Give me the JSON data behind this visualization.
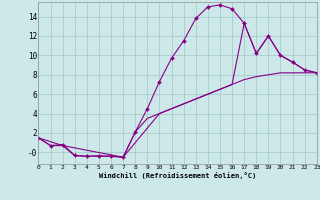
{
  "xlabel": "Windchill (Refroidissement éolien,°C)",
  "background_color": "#cce8e8",
  "grid_color": "#aacccc",
  "line_color": "#880088",
  "xlim": [
    0,
    23
  ],
  "ylim": [
    -1.2,
    15.5
  ],
  "xticks": [
    0,
    1,
    2,
    3,
    4,
    5,
    6,
    7,
    8,
    9,
    10,
    11,
    12,
    13,
    14,
    15,
    16,
    17,
    18,
    19,
    20,
    21,
    22,
    23
  ],
  "yticks": [
    0,
    2,
    4,
    6,
    8,
    10,
    12,
    14
  ],
  "ytick_labels": [
    "-0",
    "2",
    "4",
    "6",
    "8",
    "10",
    "12",
    "14"
  ],
  "series1_x": [
    0,
    1,
    2,
    3,
    4,
    5,
    6,
    7,
    8,
    9,
    10,
    11,
    12,
    13,
    14,
    15,
    16,
    17,
    18,
    19,
    20,
    21,
    22,
    23
  ],
  "series1_y": [
    1.5,
    0.7,
    0.8,
    -0.3,
    -0.4,
    -0.35,
    -0.4,
    -0.5,
    2.1,
    4.5,
    7.3,
    9.7,
    11.5,
    13.8,
    15.0,
    15.2,
    14.8,
    13.3,
    10.2,
    12.0,
    10.0,
    9.3,
    8.5,
    8.2
  ],
  "series2_x": [
    0,
    1,
    2,
    3,
    4,
    5,
    6,
    7,
    8,
    9,
    10,
    11,
    12,
    13,
    14,
    15,
    16,
    17,
    18,
    19,
    20,
    21,
    22,
    23
  ],
  "series2_y": [
    1.5,
    0.7,
    0.7,
    -0.35,
    -0.4,
    -0.4,
    -0.4,
    -0.5,
    2.1,
    3.5,
    4.0,
    4.5,
    5.0,
    5.5,
    6.0,
    6.5,
    7.0,
    7.5,
    7.8,
    8.0,
    8.2,
    8.2,
    8.2,
    8.2
  ],
  "series3_x": [
    0,
    2,
    7,
    10,
    14,
    16,
    17,
    18,
    19,
    20,
    21,
    22,
    23
  ],
  "series3_y": [
    1.5,
    0.7,
    -0.5,
    4.0,
    6.0,
    7.0,
    13.3,
    10.2,
    12.0,
    10.0,
    9.3,
    8.5,
    8.2
  ]
}
